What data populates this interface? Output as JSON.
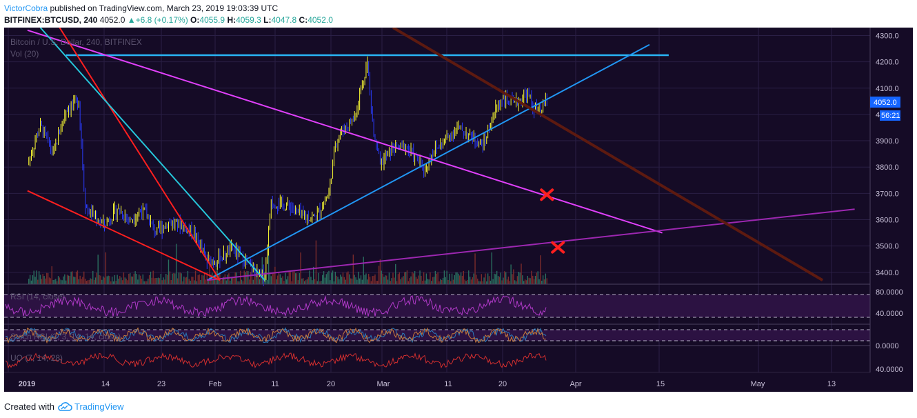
{
  "header": {
    "author": "VictorCobra",
    "published_text": " published on TradingView.com, March 23, 2019 19:03:39 UTC",
    "symbol": "BITFINEX:BTCUSD, 240",
    "last": "4052.0",
    "change": "+6.8 (+0.17%)",
    "change_arrow": "▲",
    "open_label": "O:",
    "open": "4055.9",
    "high_label": "H:",
    "high": "4059.3",
    "low_label": "L:",
    "low": "4047.8",
    "close_label": "C:",
    "close": "4052.0"
  },
  "chart": {
    "series_title": "Bitcoin / U.S. Dollar, 240, BITFINEX",
    "volume_title": "Vol (20)",
    "last_price_label": "4052.0",
    "countdown_label": "56:21",
    "background": "#150b26",
    "candle_up_color": "#ffff33",
    "candle_down_color": "#2a3cff",
    "volume_up_color": "#2a6e5f",
    "volume_down_color": "#7a2b2b"
  },
  "chart_data": {
    "type": "line",
    "title": "Bitcoin / U.S. Dollar, 240, BITFINEX",
    "price_axis": {
      "ticks": [
        "4300.0",
        "4200.0",
        "4100.0",
        "4000.0",
        "3900.0",
        "3800.0",
        "3700.0",
        "3600.0",
        "3500.0",
        "3400.0"
      ],
      "range": [
        3355,
        4330
      ]
    },
    "time_axis": {
      "ticks": [
        "2019",
        "14",
        "23",
        "Feb",
        "11",
        "20",
        "Mar",
        "11",
        "20",
        "Apr",
        "15",
        "May",
        "13"
      ]
    },
    "price_series": {
      "name": "BTCUSD",
      "x": [
        "2019-01-01",
        "2019-01-03",
        "2019-01-05",
        "2019-01-07",
        "2019-01-09",
        "2019-01-10",
        "2019-01-11",
        "2019-01-13",
        "2019-01-15",
        "2019-01-17",
        "2019-01-19",
        "2019-01-21",
        "2019-01-23",
        "2019-01-25",
        "2019-01-27",
        "2019-01-29",
        "2019-01-31",
        "2019-02-02",
        "2019-02-04",
        "2019-02-06",
        "2019-02-07",
        "2019-02-08",
        "2019-02-09",
        "2019-02-11",
        "2019-02-13",
        "2019-02-15",
        "2019-02-17",
        "2019-02-18",
        "2019-02-19",
        "2019-02-20",
        "2019-02-21",
        "2019-02-23",
        "2019-02-24",
        "2019-02-25",
        "2019-02-27",
        "2019-03-01",
        "2019-03-03",
        "2019-03-04",
        "2019-03-05",
        "2019-03-07",
        "2019-03-09",
        "2019-03-11",
        "2019-03-13",
        "2019-03-15",
        "2019-03-16",
        "2019-03-18",
        "2019-03-20",
        "2019-03-21",
        "2019-03-22",
        "2019-03-23"
      ],
      "values": [
        3810,
        3960,
        3850,
        4020,
        4050,
        3650,
        3620,
        3580,
        3640,
        3600,
        3640,
        3550,
        3590,
        3580,
        3550,
        3440,
        3450,
        3490,
        3440,
        3390,
        3390,
        3670,
        3660,
        3650,
        3610,
        3610,
        3700,
        3890,
        3940,
        3960,
        3990,
        4200,
        3920,
        3810,
        3870,
        3880,
        3820,
        3790,
        3850,
        3900,
        3950,
        3920,
        3880,
        4020,
        4060,
        4040,
        4080,
        4020,
        4010,
        4052
      ]
    },
    "volume_series": {
      "name": "Vol (20)"
    },
    "indicators": [
      {
        "name": "RSI (14, close)",
        "ticks": [
          "80.0000",
          "40.0000"
        ]
      },
      {
        "name": "Stoch RSI (3, 3, 14, 14, close)",
        "ticks": [
          "0.0000"
        ]
      },
      {
        "name": "UO (7, 14, 28)",
        "ticks": [
          "40.0000"
        ]
      }
    ],
    "drawings": [
      {
        "type": "horizontal-line",
        "color": "#29b6f6",
        "price": 4225
      },
      {
        "type": "trendline",
        "color": "#2196f3",
        "from": [
          "2019-01-29",
          3370
        ],
        "to": [
          "2019-04-08",
          4265
        ]
      },
      {
        "type": "trendline",
        "color": "#e040fb",
        "from": [
          "2019-01-01",
          4320
        ],
        "to": [
          "2019-04-10",
          3550
        ]
      },
      {
        "type": "trendline",
        "color": "#9c27b0",
        "from": [
          "2019-01-29",
          3370
        ],
        "to": [
          "2019-05-10",
          3640
        ]
      },
      {
        "type": "trendline",
        "color": "#ff1f1f",
        "from": [
          "2019-01-06",
          4330
        ],
        "to": [
          "2019-01-31",
          3370
        ]
      },
      {
        "type": "trendline",
        "color": "#ff1f1f",
        "from": [
          "2019-01-01",
          3710
        ],
        "to": [
          "2019-01-31",
          3370
        ]
      },
      {
        "type": "trendline",
        "color": "#26c6da",
        "from": [
          "2019-01-03",
          4330
        ],
        "to": [
          "2019-02-07",
          3370
        ]
      },
      {
        "type": "trendline",
        "color": "#5d1a10",
        "from": [
          "2019-02-27",
          4330
        ],
        "to": [
          "2019-05-05",
          3370
        ]
      },
      {
        "type": "marker",
        "shape": "x",
        "color": "#ff1f1f",
        "at": [
          "2019-03-23",
          3695
        ]
      },
      {
        "type": "marker",
        "shape": "x",
        "color": "#ff1f1f",
        "at": [
          "2019-03-23",
          3495
        ]
      }
    ]
  },
  "footer": {
    "created_with": "Created with",
    "brand": "TradingView"
  }
}
